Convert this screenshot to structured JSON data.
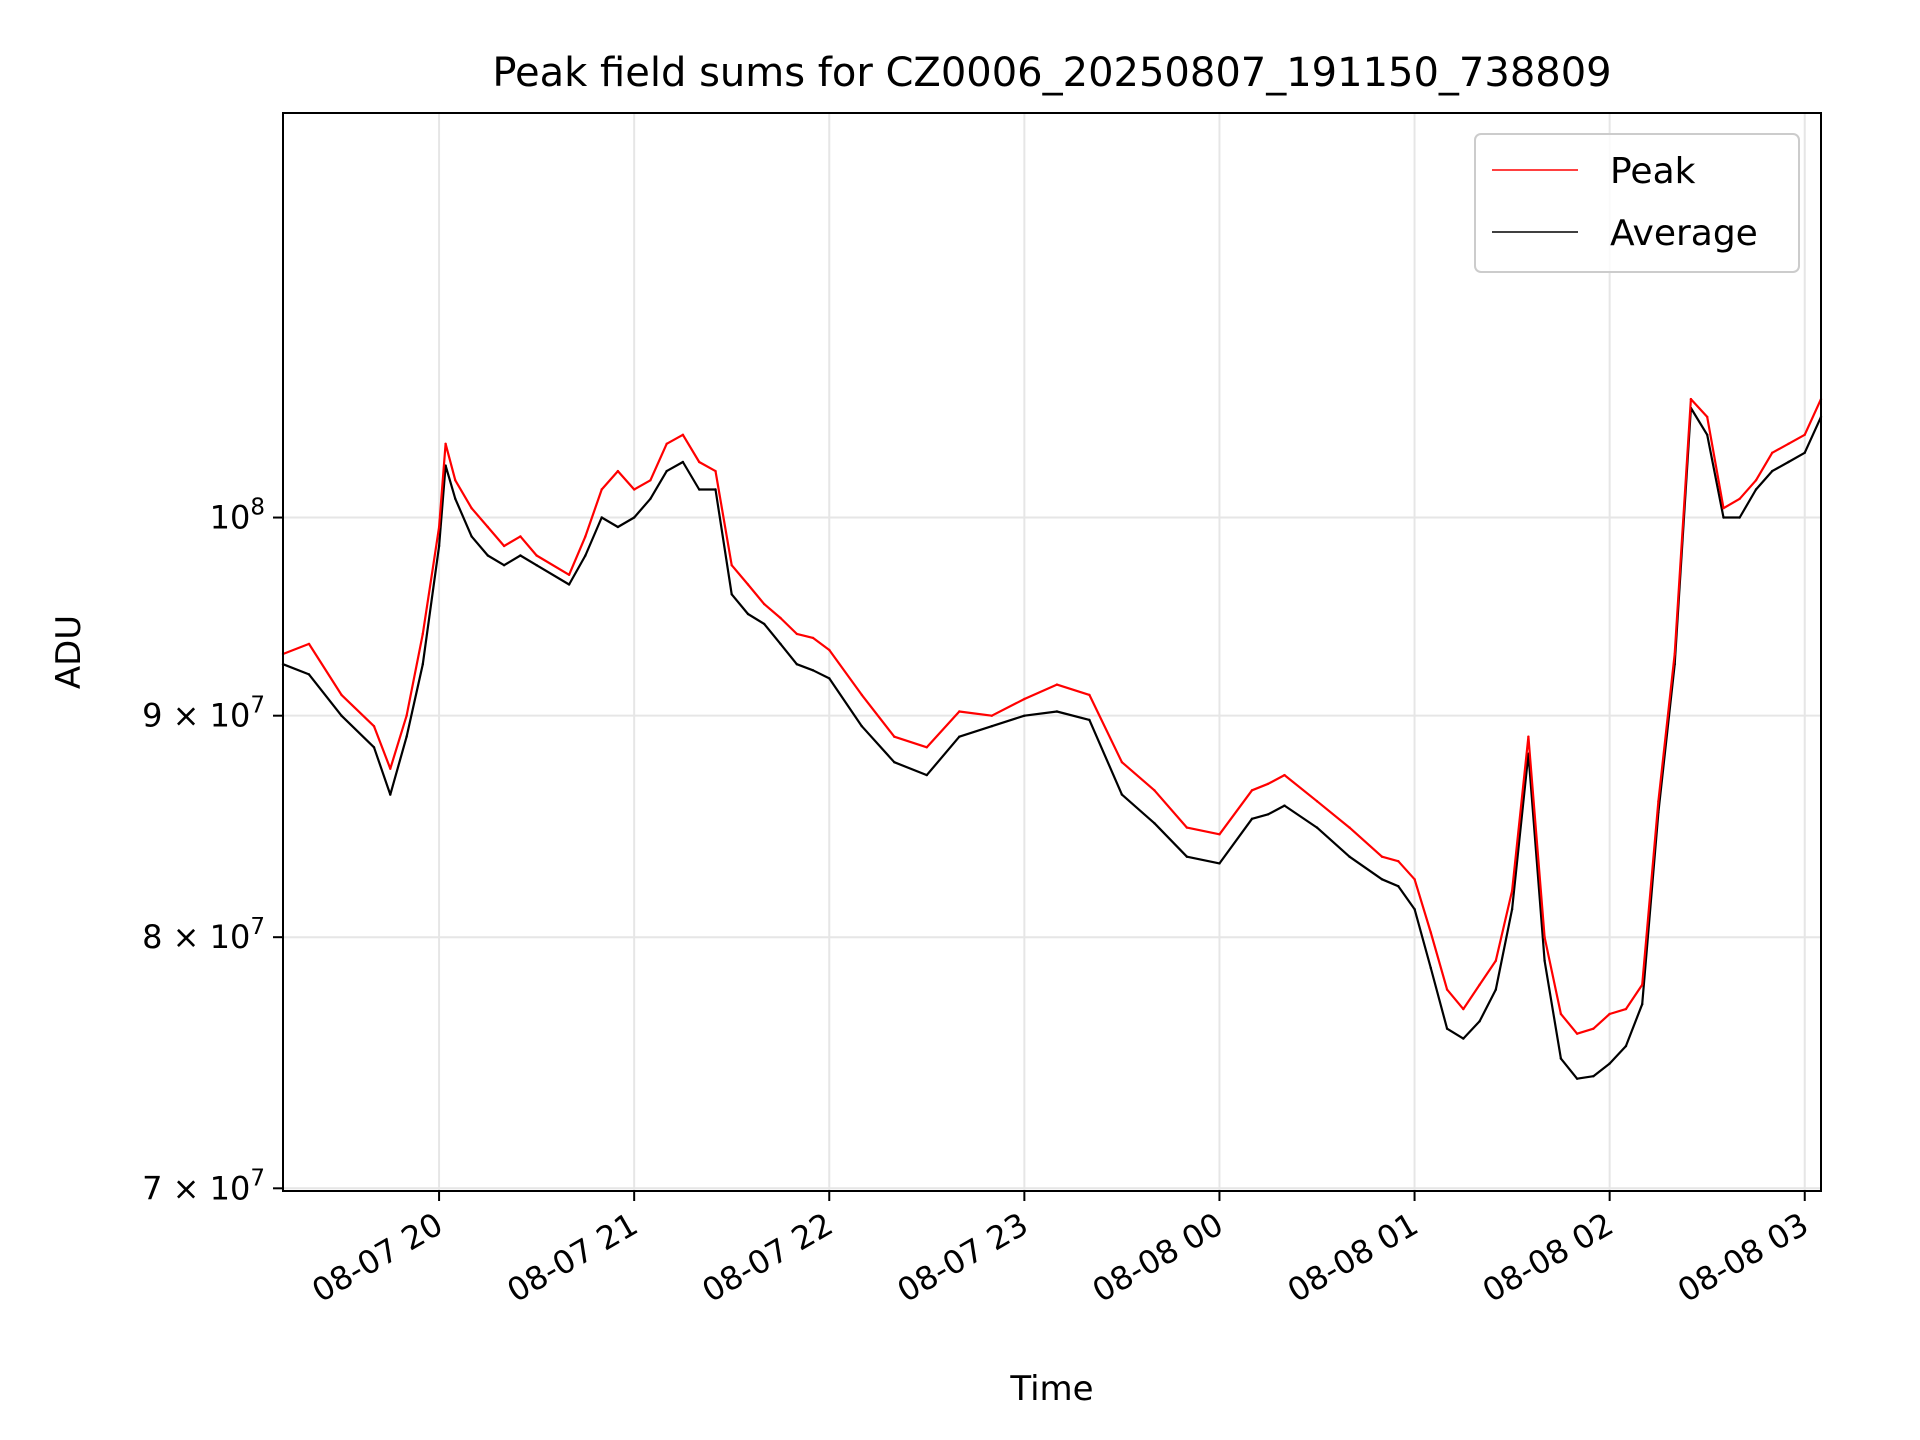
{
  "chart_data": {
    "type": "line",
    "title": "Peak field sums for CZ0006_20250807_191150_738809",
    "xlabel": "Time",
    "ylabel": "ADU",
    "y_scale": "log",
    "ylim": [
      69900000,
      124000000
    ],
    "xlim": [
      "2025-08-07 19:12",
      "2025-08-08 03:05"
    ],
    "grid": true,
    "legend_position": "upper right",
    "x_ticks": [
      "08-07 20",
      "08-07 21",
      "08-07 22",
      "08-07 23",
      "08-08 00",
      "08-08 01",
      "08-08 02",
      "08-08 03"
    ],
    "y_ticks": [
      {
        "value": 70000000,
        "mantissa": "7",
        "base": "10",
        "exp": "7"
      },
      {
        "value": 80000000,
        "mantissa": "8",
        "base": "10",
        "exp": "7"
      },
      {
        "value": 90000000,
        "mantissa": "9",
        "base": "10",
        "exp": "7"
      },
      {
        "value": 100000000,
        "mantissa": "",
        "base": "10",
        "exp": "8"
      }
    ],
    "series": [
      {
        "name": "Peak",
        "color": "#ff0000",
        "x": [
          "2025-08-07 19:12",
          "2025-08-07 19:20",
          "2025-08-07 19:30",
          "2025-08-07 19:40",
          "2025-08-07 19:45",
          "2025-08-07 19:50",
          "2025-08-07 19:55",
          "2025-08-07 20:00",
          "2025-08-07 20:02",
          "2025-08-07 20:05",
          "2025-08-07 20:10",
          "2025-08-07 20:15",
          "2025-08-07 20:20",
          "2025-08-07 20:25",
          "2025-08-07 20:30",
          "2025-08-07 20:40",
          "2025-08-07 20:45",
          "2025-08-07 20:50",
          "2025-08-07 20:55",
          "2025-08-07 21:00",
          "2025-08-07 21:05",
          "2025-08-07 21:10",
          "2025-08-07 21:15",
          "2025-08-07 21:20",
          "2025-08-07 21:25",
          "2025-08-07 21:30",
          "2025-08-07 21:35",
          "2025-08-07 21:40",
          "2025-08-07 21:45",
          "2025-08-07 21:50",
          "2025-08-07 21:55",
          "2025-08-07 22:00",
          "2025-08-07 22:10",
          "2025-08-07 22:20",
          "2025-08-07 22:30",
          "2025-08-07 22:40",
          "2025-08-07 22:50",
          "2025-08-07 23:00",
          "2025-08-07 23:10",
          "2025-08-07 23:20",
          "2025-08-07 23:30",
          "2025-08-07 23:40",
          "2025-08-07 23:50",
          "2025-08-08 00:00",
          "2025-08-08 00:10",
          "2025-08-08 00:15",
          "2025-08-08 00:20",
          "2025-08-08 00:30",
          "2025-08-08 00:40",
          "2025-08-08 00:50",
          "2025-08-08 00:55",
          "2025-08-08 01:00",
          "2025-08-08 01:05",
          "2025-08-08 01:10",
          "2025-08-08 01:15",
          "2025-08-08 01:20",
          "2025-08-08 01:25",
          "2025-08-08 01:30",
          "2025-08-08 01:35",
          "2025-08-08 01:40",
          "2025-08-08 01:45",
          "2025-08-08 01:50",
          "2025-08-08 01:55",
          "2025-08-08 02:00",
          "2025-08-08 02:05",
          "2025-08-08 02:10",
          "2025-08-08 02:15",
          "2025-08-08 02:20",
          "2025-08-08 02:25",
          "2025-08-08 02:30",
          "2025-08-08 02:35",
          "2025-08-08 02:40",
          "2025-08-08 02:45",
          "2025-08-08 02:50",
          "2025-08-08 02:55",
          "2025-08-08 03:00",
          "2025-08-08 03:05"
        ],
        "values": [
          93000000,
          93500000,
          91000000,
          89500000,
          87500000,
          90000000,
          94000000,
          99500000,
          104000000,
          102000000,
          100500000,
          99500000,
          98500000,
          99000000,
          98000000,
          97000000,
          99000000,
          101500000,
          102500000,
          101500000,
          102000000,
          104000000,
          104500000,
          103000000,
          102500000,
          97500000,
          96500000,
          95500000,
          94800000,
          94000000,
          93800000,
          93200000,
          91000000,
          89000000,
          88500000,
          90200000,
          90000000,
          90800000,
          91500000,
          91000000,
          87800000,
          86500000,
          84800000,
          84500000,
          86500000,
          86800000,
          87200000,
          86000000,
          84800000,
          83500000,
          83300000,
          82500000,
          80200000,
          77800000,
          77000000,
          78000000,
          79000000,
          82000000,
          89000000,
          80000000,
          76800000,
          76000000,
          76200000,
          76800000,
          77000000,
          78000000,
          86000000,
          93000000,
          106500000,
          105500000,
          100500000,
          101000000,
          102000000,
          103500000,
          104000000,
          104500000,
          106500000
        ]
      },
      {
        "name": "Average",
        "color": "#000000",
        "x": [
          "2025-08-07 19:12",
          "2025-08-07 19:20",
          "2025-08-07 19:30",
          "2025-08-07 19:40",
          "2025-08-07 19:45",
          "2025-08-07 19:50",
          "2025-08-07 19:55",
          "2025-08-07 20:00",
          "2025-08-07 20:02",
          "2025-08-07 20:05",
          "2025-08-07 20:10",
          "2025-08-07 20:15",
          "2025-08-07 20:20",
          "2025-08-07 20:25",
          "2025-08-07 20:30",
          "2025-08-07 20:40",
          "2025-08-07 20:45",
          "2025-08-07 20:50",
          "2025-08-07 20:55",
          "2025-08-07 21:00",
          "2025-08-07 21:05",
          "2025-08-07 21:10",
          "2025-08-07 21:15",
          "2025-08-07 21:20",
          "2025-08-07 21:25",
          "2025-08-07 21:30",
          "2025-08-07 21:35",
          "2025-08-07 21:40",
          "2025-08-07 21:45",
          "2025-08-07 21:50",
          "2025-08-07 21:55",
          "2025-08-07 22:00",
          "2025-08-07 22:10",
          "2025-08-07 22:20",
          "2025-08-07 22:30",
          "2025-08-07 22:40",
          "2025-08-07 22:50",
          "2025-08-07 23:00",
          "2025-08-07 23:10",
          "2025-08-07 23:20",
          "2025-08-07 23:30",
          "2025-08-07 23:40",
          "2025-08-07 23:50",
          "2025-08-08 00:00",
          "2025-08-08 00:10",
          "2025-08-08 00:15",
          "2025-08-08 00:20",
          "2025-08-08 00:30",
          "2025-08-08 00:40",
          "2025-08-08 00:50",
          "2025-08-08 00:55",
          "2025-08-08 01:00",
          "2025-08-08 01:05",
          "2025-08-08 01:10",
          "2025-08-08 01:15",
          "2025-08-08 01:20",
          "2025-08-08 01:25",
          "2025-08-08 01:30",
          "2025-08-08 01:35",
          "2025-08-08 01:40",
          "2025-08-08 01:45",
          "2025-08-08 01:50",
          "2025-08-08 01:55",
          "2025-08-08 02:00",
          "2025-08-08 02:05",
          "2025-08-08 02:10",
          "2025-08-08 02:15",
          "2025-08-08 02:20",
          "2025-08-08 02:25",
          "2025-08-08 02:30",
          "2025-08-08 02:35",
          "2025-08-08 02:40",
          "2025-08-08 02:45",
          "2025-08-08 02:50",
          "2025-08-08 02:55",
          "2025-08-08 03:00",
          "2025-08-08 03:05"
        ],
        "values": [
          92500000,
          92000000,
          90000000,
          88500000,
          86300000,
          89000000,
          92500000,
          98500000,
          102800000,
          101000000,
          99000000,
          98000000,
          97500000,
          98000000,
          97500000,
          96500000,
          98000000,
          100000000,
          99500000,
          100000000,
          101000000,
          102500000,
          103000000,
          101500000,
          101500000,
          96000000,
          95000000,
          94500000,
          93500000,
          92500000,
          92200000,
          91800000,
          89500000,
          87800000,
          87200000,
          89000000,
          89500000,
          90000000,
          90200000,
          89800000,
          86300000,
          85000000,
          83500000,
          83200000,
          85200000,
          85400000,
          85800000,
          84800000,
          83500000,
          82500000,
          82200000,
          81200000,
          78700000,
          76200000,
          75800000,
          76500000,
          77800000,
          81200000,
          88200000,
          79000000,
          75000000,
          74200000,
          74300000,
          74800000,
          75500000,
          77200000,
          85500000,
          92500000,
          106000000,
          104500000,
          100000000,
          100000000,
          101500000,
          102500000,
          103000000,
          103500000,
          105500000
        ]
      }
    ]
  }
}
